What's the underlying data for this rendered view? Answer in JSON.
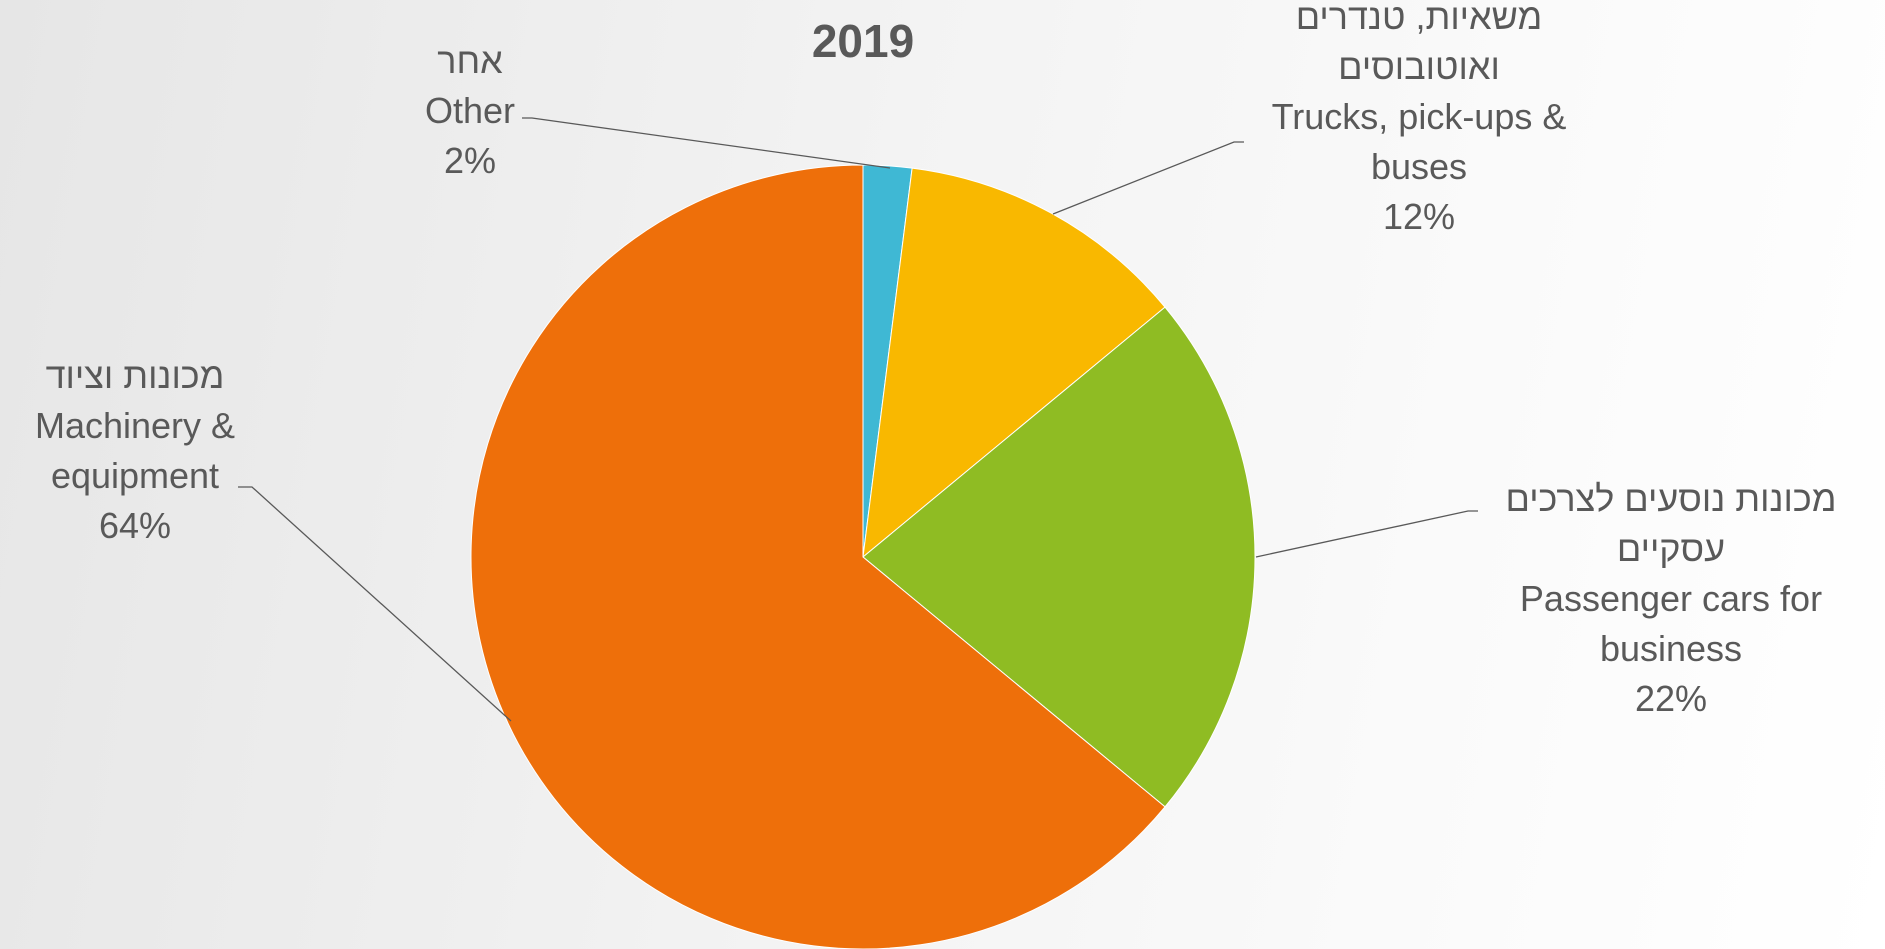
{
  "chart_data": {
    "type": "pie",
    "title": "2019",
    "categories": [
      "Other",
      "Trucks, pick-ups & buses",
      "Passenger cars for business",
      "Machinery & equipment"
    ],
    "categories_he": [
      "אחר",
      "משאיות, טנדרים ואוטובוסים",
      "מכונות נוסעים לצרכים עסקיים",
      "מכונות וציוד"
    ],
    "values": [
      2,
      12,
      22,
      64
    ],
    "value_labels": [
      "2%",
      "12%",
      "22%",
      "64%"
    ],
    "colors": [
      "#3fb8d4",
      "#f9b800",
      "#8fbc23",
      "#ee6f0a"
    ]
  }
}
